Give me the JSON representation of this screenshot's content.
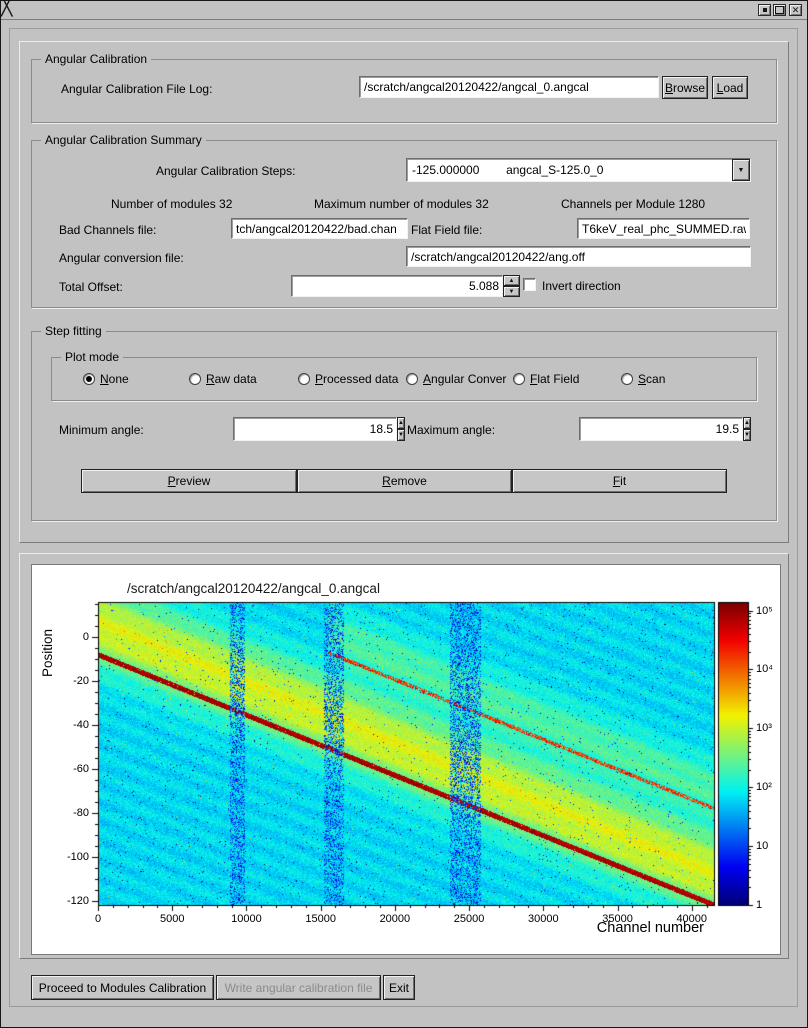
{
  "angular_calibration": {
    "title": "Angular Calibration",
    "file_log_label": "Angular Calibration File Log:",
    "file_log_value": "/scratch/angcal20120422/angcal_0.angcal",
    "browse": "Browse",
    "load": "Load"
  },
  "summary": {
    "title": "Angular Calibration Summary",
    "steps_label": "Angular Calibration Steps:",
    "steps_value": "-125.000000        angcal_S-125.0_0",
    "modules_info": "Number of modules 32",
    "max_modules_info": "Maximum number of modules 32",
    "channels_info": "Channels per Module 1280",
    "bad_channels_label": "Bad Channels file:",
    "bad_channels_value": "tch/angcal20120422/bad.chan",
    "flat_field_label": "Flat Field file:",
    "flat_field_value": "T6keV_real_phc_SUMMED.raw",
    "ang_conv_label": "Angular conversion file:",
    "ang_conv_value": "/scratch/angcal20120422/ang.off",
    "total_offset_label": "Total Offset:",
    "total_offset_value": "5.088",
    "invert_label": "Invert direction",
    "invert_checked": false
  },
  "step_fitting": {
    "title": "Step fitting",
    "plot_mode_title": "Plot mode",
    "plot_modes": [
      {
        "label": "None",
        "selected": true
      },
      {
        "label": "Raw data",
        "selected": false
      },
      {
        "label": "Processed data",
        "selected": false
      },
      {
        "label": "Angular Conver",
        "selected": false
      },
      {
        "label": "Flat Field",
        "selected": false
      },
      {
        "label": "Scan",
        "selected": false
      }
    ],
    "min_angle_label": "Minimum angle:",
    "min_angle_value": "18.5",
    "max_angle_label": "Maximum angle:",
    "max_angle_value": "19.5",
    "preview": "Preview",
    "remove": "Remove",
    "fit": "Fit"
  },
  "footer": {
    "proceed": "Proceed to Modules Calibration",
    "write": "Write angular calibration file",
    "write_enabled": false,
    "exit": "Exit"
  },
  "chart_data": {
    "type": "heatmap",
    "title": "/scratch/angcal20120422/angcal_0.angcal",
    "xlabel": "Channel number",
    "ylabel": "Position",
    "x_range": [
      0,
      41500
    ],
    "y_range": [
      -122,
      16
    ],
    "x_ticks": [
      0,
      5000,
      10000,
      15000,
      20000,
      25000,
      30000,
      35000,
      40000
    ],
    "y_ticks": [
      0,
      -20,
      -40,
      -60,
      -80,
      -100,
      -120
    ],
    "z_scale": "log",
    "z_range": [
      1,
      140000
    ],
    "colorbar_ticks": [
      "10⁵",
      "10⁴",
      "10³",
      "10²",
      "10",
      "1"
    ],
    "colormap": "jet",
    "legend_position": "right",
    "features": {
      "background_level": 0.35,
      "band_offset": 14,
      "band_sigma": 13,
      "band_strength": 0.25,
      "ridge_lines": [
        {
          "x0": 0,
          "y0": -8,
          "x1": 41500,
          "y1": -122,
          "strength": 1.0
        },
        {
          "x0": 15500,
          "y0": -7,
          "x1": 41500,
          "y1": -78,
          "strength": 0.6
        }
      ],
      "noise_stripes_x": [
        [
          8900,
          9900
        ],
        [
          15200,
          16600
        ],
        [
          23700,
          25800
        ]
      ]
    }
  }
}
